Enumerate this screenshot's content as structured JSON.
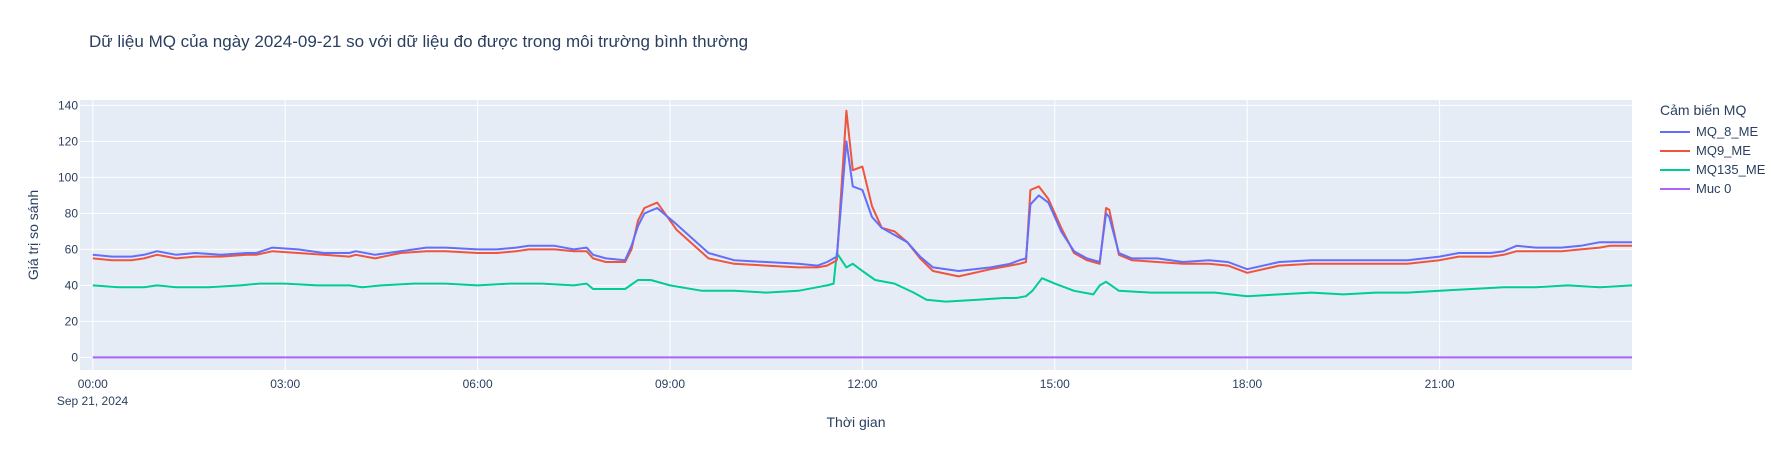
{
  "chart_data": {
    "type": "line",
    "title": "Dữ liệu MQ của ngày 2024-09-21 so với dữ liệu đo được trong môi trường bình thường",
    "xlabel": "Thời gian",
    "ylabel": "Giá trị so sánh",
    "xlim": [
      -0.2,
      24.0
    ],
    "ylim": [
      -7,
      143
    ],
    "grid": true,
    "x_ticks": [
      {
        "value": 0,
        "label": "00:00"
      },
      {
        "value": 3,
        "label": "03:00"
      },
      {
        "value": 6,
        "label": "06:00"
      },
      {
        "value": 9,
        "label": "09:00"
      },
      {
        "value": 12,
        "label": "12:00"
      },
      {
        "value": 15,
        "label": "15:00"
      },
      {
        "value": 18,
        "label": "18:00"
      },
      {
        "value": 21,
        "label": "21:00"
      }
    ],
    "x_date_label": "Sep 21, 2024",
    "y_ticks": [
      0,
      20,
      40,
      60,
      80,
      100,
      120,
      140
    ],
    "legend_title": "Cảm biến MQ",
    "legend_position": "right",
    "series": [
      {
        "name": "MQ_8_ME",
        "color": "#636efa",
        "x": [
          0.0,
          0.3,
          0.6,
          0.8,
          1.0,
          1.3,
          1.6,
          2.0,
          2.4,
          2.55,
          2.8,
          3.2,
          3.6,
          4.0,
          4.1,
          4.4,
          4.8,
          5.2,
          5.5,
          6.0,
          6.3,
          6.6,
          6.8,
          7.2,
          7.5,
          7.7,
          7.8,
          8.0,
          8.3,
          8.4,
          8.5,
          8.6,
          8.8,
          9.1,
          9.6,
          10.0,
          10.5,
          11.0,
          11.3,
          11.45,
          11.55,
          11.6,
          11.75,
          11.85,
          12.0,
          12.15,
          12.3,
          12.5,
          12.7,
          12.9,
          13.1,
          13.5,
          14.0,
          14.3,
          14.45,
          14.55,
          14.62,
          14.75,
          14.9,
          15.1,
          15.3,
          15.5,
          15.6,
          15.7,
          15.8,
          15.85,
          16.0,
          16.2,
          16.6,
          17.0,
          17.4,
          17.7,
          18.0,
          18.5,
          19.0,
          19.5,
          20.0,
          20.5,
          21.0,
          21.3,
          21.8,
          22.0,
          22.2,
          22.5,
          22.9,
          23.2,
          23.5,
          23.65,
          24.0
        ],
        "y": [
          57,
          56,
          56,
          57,
          59,
          57,
          58,
          57,
          58,
          58,
          61,
          60,
          58,
          58,
          59,
          57,
          59,
          61,
          61,
          60,
          60,
          61,
          62,
          62,
          60,
          61,
          57,
          55,
          54,
          62,
          73,
          80,
          83,
          74,
          58,
          54,
          53,
          52,
          51,
          53,
          55,
          56,
          120,
          95,
          93,
          78,
          72,
          68,
          64,
          56,
          50,
          48,
          50,
          52,
          54,
          55,
          85,
          90,
          86,
          70,
          59,
          55,
          54,
          53,
          80,
          78,
          58,
          55,
          55,
          53,
          54,
          53,
          49,
          53,
          54,
          54,
          54,
          54,
          56,
          58,
          58,
          59,
          62,
          61,
          61,
          62,
          64,
          64,
          64
        ]
      },
      {
        "name": "MQ9_ME",
        "color": "#ef553b",
        "x": [
          0.0,
          0.3,
          0.6,
          0.8,
          1.0,
          1.3,
          1.6,
          2.0,
          2.4,
          2.55,
          2.8,
          3.2,
          3.6,
          4.0,
          4.1,
          4.4,
          4.8,
          5.2,
          5.5,
          6.0,
          6.3,
          6.6,
          6.8,
          7.2,
          7.5,
          7.7,
          7.8,
          8.0,
          8.3,
          8.4,
          8.5,
          8.6,
          8.8,
          9.1,
          9.6,
          10.0,
          10.5,
          11.0,
          11.3,
          11.45,
          11.55,
          11.6,
          11.75,
          11.85,
          12.0,
          12.15,
          12.3,
          12.5,
          12.7,
          12.9,
          13.1,
          13.5,
          14.0,
          14.3,
          14.45,
          14.55,
          14.62,
          14.75,
          14.9,
          15.1,
          15.3,
          15.5,
          15.6,
          15.7,
          15.8,
          15.85,
          16.0,
          16.2,
          16.6,
          17.0,
          17.4,
          17.7,
          18.0,
          18.5,
          19.0,
          19.5,
          20.0,
          20.5,
          21.0,
          21.3,
          21.8,
          22.0,
          22.2,
          22.5,
          22.9,
          23.2,
          23.5,
          23.65,
          24.0
        ],
        "y": [
          55,
          54,
          54,
          55,
          57,
          55,
          56,
          56,
          57,
          57,
          59,
          58,
          57,
          56,
          57,
          55,
          58,
          59,
          59,
          58,
          58,
          59,
          60,
          60,
          59,
          59,
          55,
          53,
          53,
          60,
          76,
          83,
          86,
          71,
          55,
          52,
          51,
          50,
          50,
          51,
          53,
          54,
          137,
          104,
          106,
          84,
          72,
          70,
          64,
          55,
          48,
          45,
          49,
          51,
          52,
          53,
          93,
          95,
          88,
          72,
          58,
          54,
          53,
          52,
          83,
          82,
          57,
          54,
          53,
          52,
          52,
          51,
          47,
          51,
          52,
          52,
          52,
          52,
          54,
          56,
          56,
          57,
          59,
          59,
          59,
          60,
          61,
          62,
          62
        ]
      },
      {
        "name": "MQ135_ME",
        "color": "#00cc96",
        "x": [
          0.0,
          0.4,
          0.8,
          1.0,
          1.3,
          1.8,
          2.3,
          2.6,
          3.0,
          3.5,
          4.0,
          4.2,
          4.5,
          5.0,
          5.5,
          6.0,
          6.5,
          7.0,
          7.5,
          7.7,
          7.8,
          8.0,
          8.2,
          8.3,
          8.5,
          8.7,
          9.0,
          9.5,
          10.0,
          10.5,
          11.0,
          11.3,
          11.45,
          11.55,
          11.6,
          11.75,
          11.85,
          12.0,
          12.2,
          12.5,
          12.8,
          13.0,
          13.3,
          13.8,
          14.2,
          14.4,
          14.55,
          14.65,
          14.8,
          15.0,
          15.3,
          15.6,
          15.7,
          15.8,
          16.0,
          16.5,
          17.0,
          17.5,
          18.0,
          18.5,
          19.0,
          19.5,
          20.0,
          20.5,
          21.0,
          21.5,
          22.0,
          22.5,
          23.0,
          23.5,
          24.0
        ],
        "y": [
          40,
          39,
          39,
          40,
          39,
          39,
          40,
          41,
          41,
          40,
          40,
          39,
          40,
          41,
          41,
          40,
          41,
          41,
          40,
          41,
          38,
          38,
          38,
          38,
          43,
          43,
          40,
          37,
          37,
          36,
          37,
          39,
          40,
          41,
          58,
          50,
          52,
          48,
          43,
          41,
          36,
          32,
          31,
          32,
          33,
          33,
          34,
          37,
          44,
          41,
          37,
          35,
          40,
          42,
          37,
          36,
          36,
          36,
          34,
          35,
          36,
          35,
          36,
          36,
          37,
          38,
          39,
          39,
          40,
          39,
          40
        ]
      },
      {
        "name": "Muc 0",
        "color": "#ab63fa",
        "x": [
          0.0,
          24.0
        ],
        "y": [
          0,
          0
        ]
      }
    ]
  }
}
